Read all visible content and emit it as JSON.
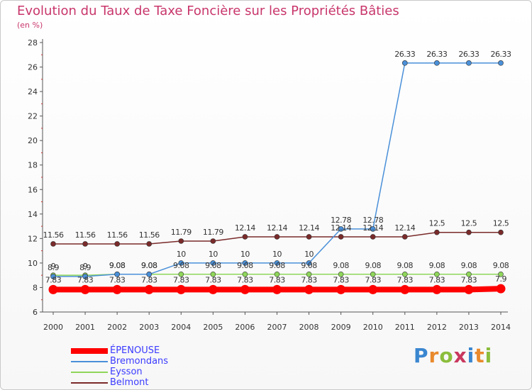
{
  "title": "Evolution du Taux de Taxe Foncière sur les Propriétés Bâties",
  "subtitle": "(en %)",
  "brand": {
    "text": "Proxiti",
    "colors": [
      "#3a86d0",
      "#e98a2c",
      "#8bbd3c",
      "#c9385e",
      "#3a86d0",
      "#e98a2c",
      "#8bbd3c"
    ]
  },
  "chart_data": {
    "type": "line",
    "x": [
      "2000",
      "2001",
      "2002",
      "2003",
      "2004",
      "2005",
      "2006",
      "2007",
      "2008",
      "2009",
      "2010",
      "2011",
      "2012",
      "2013",
      "2014"
    ],
    "ylim": [
      6,
      28
    ],
    "yticks": [
      6,
      8,
      10,
      12,
      14,
      16,
      18,
      20,
      22,
      24,
      26,
      28
    ],
    "grid": false,
    "legend_position": "bottom-left",
    "series": [
      {
        "name": "ÉPENOUSE",
        "color": "#ff0000",
        "values": [
          7.83,
          7.83,
          7.83,
          7.83,
          7.83,
          7.83,
          7.83,
          7.83,
          7.83,
          7.83,
          7.83,
          7.83,
          7.83,
          7.83,
          7.9
        ],
        "labels": [
          "7.83",
          "7.83",
          "7.83",
          "7.83",
          "7.83",
          "7.83",
          "7.83",
          "7.83",
          "7.83",
          "7.83",
          "7.83",
          "7.83",
          "7.83",
          "7.83",
          "7.9"
        ]
      },
      {
        "name": "Bremondans",
        "color": "#4a90d9",
        "values": [
          8.9,
          8.9,
          9.08,
          9.08,
          10,
          10,
          10,
          10,
          10,
          12.78,
          12.78,
          26.33,
          26.33,
          26.33,
          26.33
        ],
        "labels": [
          "8.9",
          "8.9",
          "9.08",
          "9.08",
          "10",
          "10",
          "10",
          "10",
          "10",
          "12.78",
          "12.78",
          "26.33",
          "26.33",
          "26.33",
          "26.33"
        ]
      },
      {
        "name": "Eysson",
        "color": "#8fd65a",
        "values": [
          9,
          9,
          9.08,
          9.08,
          9.08,
          9.08,
          9.08,
          9.08,
          9.08,
          9.08,
          9.08,
          9.08,
          9.08,
          9.08,
          9.08
        ],
        "labels": [
          "9",
          "9",
          "9.08",
          "9.08",
          "9.08",
          "9.08",
          "9.08",
          "9.08",
          "9.08",
          "9.08",
          "9.08",
          "9.08",
          "9.08",
          "9.08",
          "9.08"
        ]
      },
      {
        "name": "Belmont",
        "color": "#7a2a2a",
        "values": [
          11.56,
          11.56,
          11.56,
          11.56,
          11.79,
          11.79,
          12.14,
          12.14,
          12.14,
          12.14,
          12.14,
          12.14,
          12.5,
          12.5,
          12.5
        ],
        "labels": [
          "11.56",
          "11.56",
          "11.56",
          "11.56",
          "11.79",
          "11.79",
          "12.14",
          "12.14",
          "12.14",
          "12.14",
          "12.14",
          "12.14",
          "12.5",
          "12.5",
          "12.5"
        ]
      }
    ]
  }
}
